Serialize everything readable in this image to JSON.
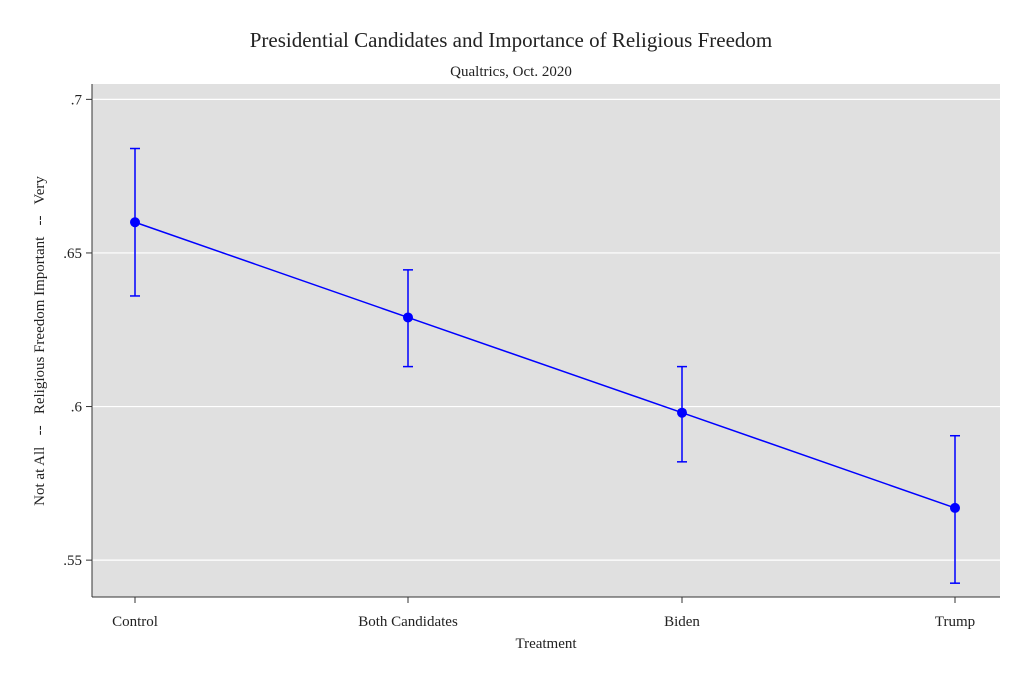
{
  "chart_data": {
    "type": "line",
    "title": "Presidential Candidates and Importance of Religious Freedom",
    "subtitle": "Qualtrics, Oct. 2020",
    "xlabel": "Treatment",
    "ylabel": "Not at All   --   Religious Freedom Important   --   Very",
    "categories": [
      "Control",
      "Both Candidates",
      "Biden",
      "Trump"
    ],
    "values": [
      0.66,
      0.629,
      0.598,
      0.567
    ],
    "ci_upper": [
      0.684,
      0.6445,
      0.613,
      0.5905
    ],
    "ci_lower": [
      0.636,
      0.613,
      0.582,
      0.5425
    ],
    "yticks": [
      0.55,
      0.6,
      0.65,
      0.7
    ],
    "ytick_labels": [
      ".55",
      ".6",
      ".65",
      ".7"
    ],
    "ylim": [
      0.538,
      0.705
    ],
    "grid": true,
    "colors": {
      "series": "#0000ff",
      "plot_background": "#e0e0e0",
      "grid": "#ffffff"
    }
  }
}
